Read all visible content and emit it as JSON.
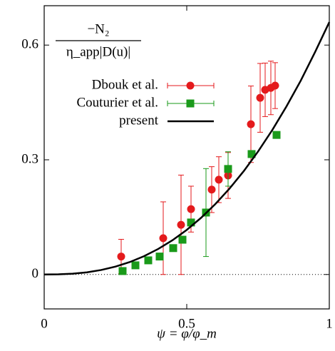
{
  "chart_data": {
    "type": "scatter",
    "ylabel_numerator": "−N₂",
    "ylabel_denominator": "η_app|D(u)|",
    "xlabel": "ψ = φ/φ_m",
    "xlim": [
      0,
      1
    ],
    "ylim": [
      -0.09,
      0.703
    ],
    "xticks": [
      0,
      0.5,
      1
    ],
    "yticks": [
      0,
      0.3,
      0.6
    ],
    "series": [
      {
        "name": "Dbouk et al.",
        "color": "#e41a1c",
        "marker": "circle",
        "x": [
          0.27,
          0.4175,
          0.48,
          0.515,
          0.5875,
          0.6125,
          0.645,
          0.725,
          0.7575,
          0.775,
          0.795,
          0.81
        ],
        "values": [
          0.047,
          0.095,
          0.13,
          0.171,
          0.222,
          0.248,
          0.259,
          0.393,
          0.462,
          0.483,
          0.488,
          0.494
        ],
        "errors": [
          0.045,
          0.095,
          0.13,
          0.06,
          0.06,
          0.06,
          0.06,
          0.1,
          0.09,
          0.07,
          0.07,
          0.06
        ]
      },
      {
        "name": "Couturier et al.",
        "color": "#1a9a1a",
        "marker": "square",
        "x": [
          0.275,
          0.32,
          0.365,
          0.405,
          0.4525,
          0.485,
          0.515,
          0.5675,
          0.645,
          0.7275,
          0.815
        ],
        "values": [
          0.009,
          0.024,
          0.037,
          0.047,
          0.069,
          0.091,
          0.136,
          0.162,
          0.276,
          0.315,
          0.365
        ],
        "errors": [
          0,
          0,
          0,
          0,
          0,
          0,
          0,
          0.115,
          0.045,
          0,
          0
        ]
      },
      {
        "name": "present",
        "color": "#000000",
        "marker": "line",
        "x": [
          0,
          0.05,
          0.1,
          0.15,
          0.2,
          0.25,
          0.3,
          0.35,
          0.4,
          0.45,
          0.5,
          0.55,
          0.6,
          0.65,
          0.7,
          0.75,
          0.8,
          0.85,
          0.9,
          0.95,
          1
        ],
        "values": [
          0,
          0.0004,
          0.0021,
          0.0057,
          0.0118,
          0.0206,
          0.0325,
          0.0478,
          0.0668,
          0.0896,
          0.1167,
          0.1481,
          0.184,
          0.2247,
          0.2704,
          0.3215,
          0.3778,
          0.4399,
          0.5072,
          0.5816,
          0.66
        ]
      }
    ]
  }
}
